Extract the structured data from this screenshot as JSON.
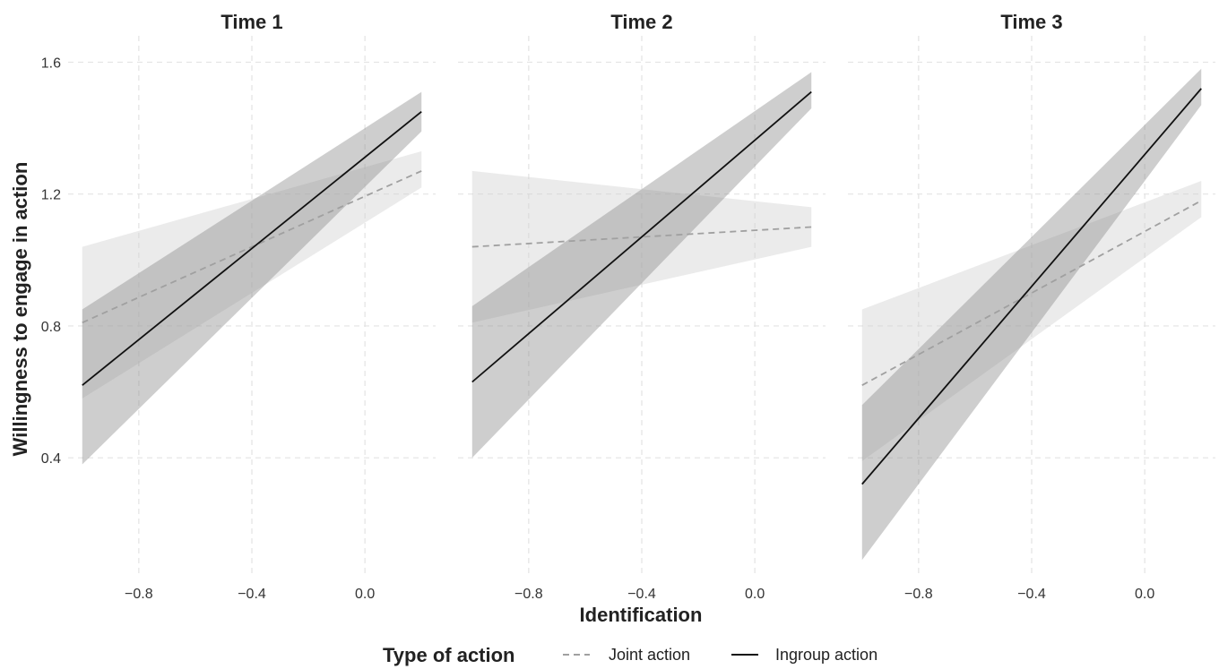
{
  "chart_data": {
    "type": "line",
    "xlabel": "Identification",
    "ylabel": "Willingness to engage in action",
    "xlim": [
      -1.05,
      0.25
    ],
    "ylim": [
      0.05,
      1.68
    ],
    "x_ticks": [
      -0.8,
      -0.4,
      0.0
    ],
    "x_tick_labels": [
      "−0.8",
      "−0.4",
      "0.0"
    ],
    "y_ticks": [
      0.4,
      0.8,
      1.2,
      1.6
    ],
    "y_tick_labels": [
      "0.4",
      "0.8",
      "1.2",
      "1.6"
    ],
    "grid": true,
    "legend": {
      "title": "Type of action",
      "position": "bottom",
      "entries": [
        {
          "label": "Joint action",
          "style": "dashed",
          "color": "#a0a0a0"
        },
        {
          "label": "Ingroup action",
          "style": "solid",
          "color": "#111111"
        }
      ]
    },
    "panels": [
      {
        "title": "Time 1",
        "series": [
          {
            "name": "Joint action",
            "x": [
              -1.0,
              0.2
            ],
            "y": [
              0.81,
              1.27
            ],
            "ci_low": [
              0.58,
              1.22
            ],
            "ci_high": [
              1.04,
              1.33
            ]
          },
          {
            "name": "Ingroup action",
            "x": [
              -1.0,
              0.2
            ],
            "y": [
              0.62,
              1.45
            ],
            "ci_low": [
              0.38,
              1.39
            ],
            "ci_high": [
              0.85,
              1.51
            ]
          }
        ]
      },
      {
        "title": "Time 2",
        "series": [
          {
            "name": "Joint action",
            "x": [
              -1.0,
              0.2
            ],
            "y": [
              1.04,
              1.1
            ],
            "ci_low": [
              0.81,
              1.04
            ],
            "ci_high": [
              1.27,
              1.16
            ]
          },
          {
            "name": "Ingroup action",
            "x": [
              -1.0,
              0.2
            ],
            "y": [
              0.63,
              1.51
            ],
            "ci_low": [
              0.4,
              1.46
            ],
            "ci_high": [
              0.86,
              1.57
            ]
          }
        ]
      },
      {
        "title": "Time 3",
        "series": [
          {
            "name": "Joint action",
            "x": [
              -1.0,
              0.2
            ],
            "y": [
              0.62,
              1.18
            ],
            "ci_low": [
              0.39,
              1.13
            ],
            "ci_high": [
              0.85,
              1.24
            ]
          },
          {
            "name": "Ingroup action",
            "x": [
              -1.0,
              0.2
            ],
            "y": [
              0.32,
              1.52
            ],
            "ci_low": [
              0.09,
              1.47
            ],
            "ci_high": [
              0.56,
              1.58
            ]
          }
        ]
      }
    ]
  }
}
